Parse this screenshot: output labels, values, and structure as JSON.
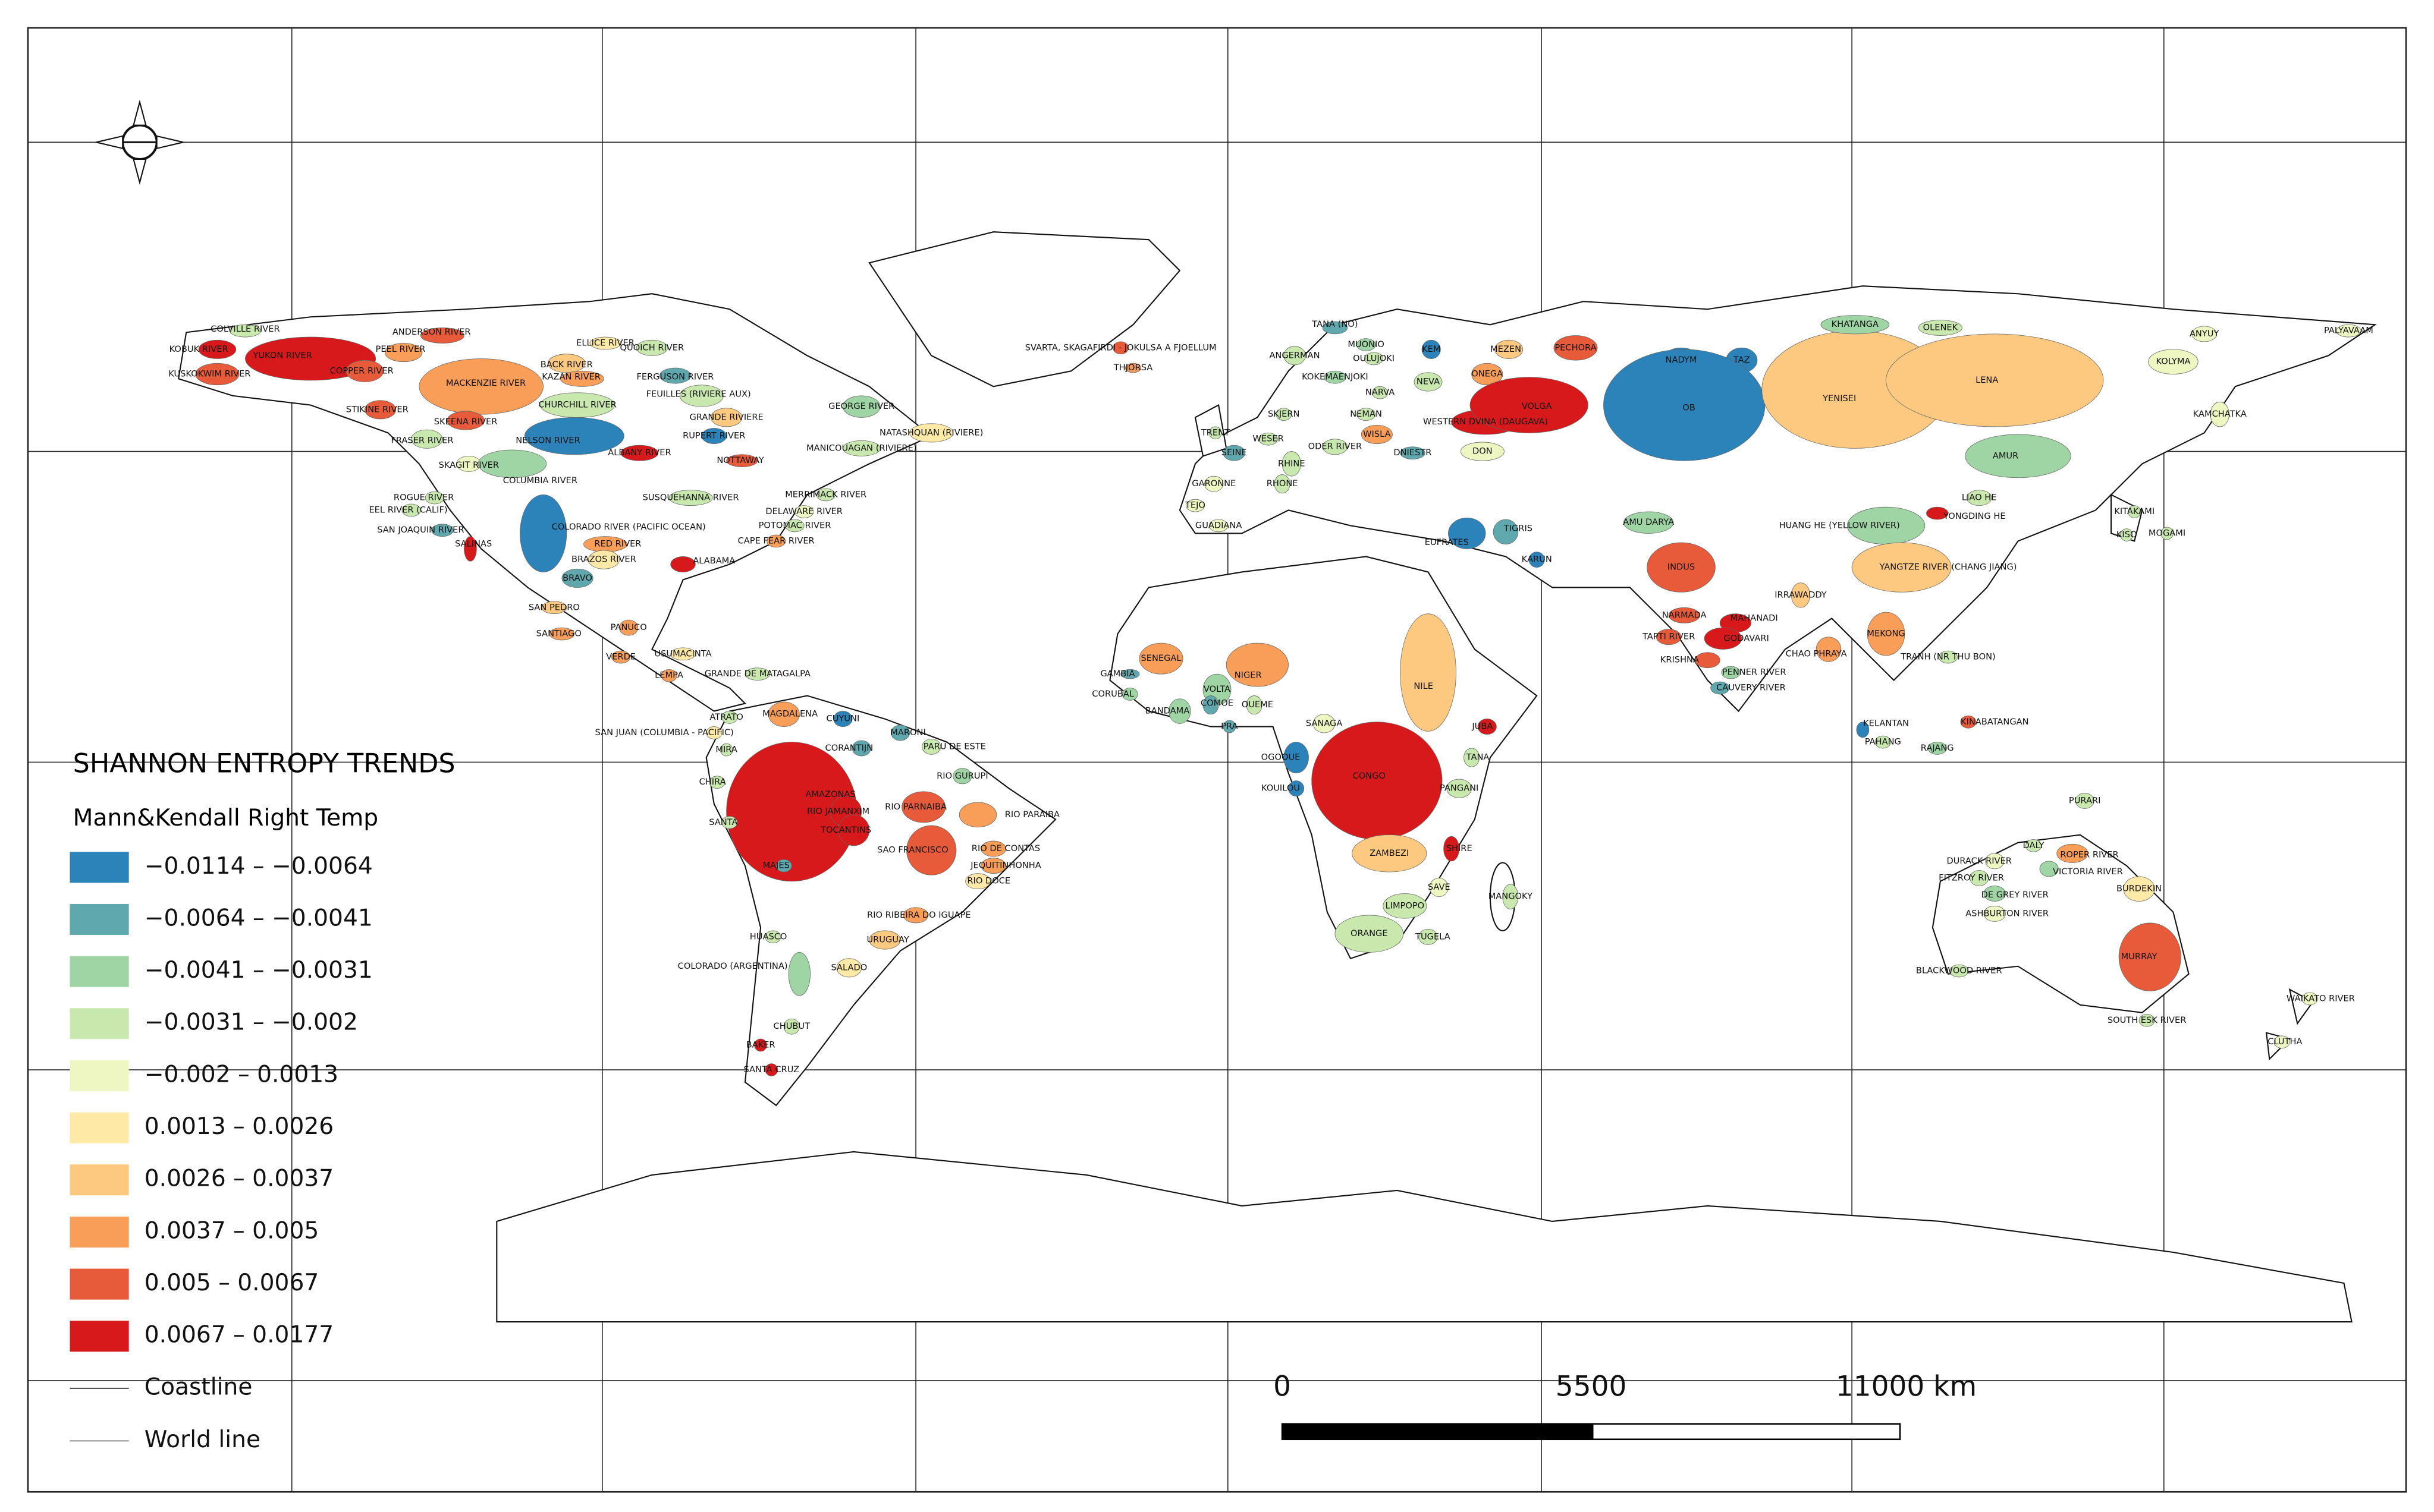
{
  "title": "SHANNON ENTROPY TRENDS",
  "subtitle": "Mann&Kendall Right Temp",
  "legend": [
    {
      "label": "−0.0114 – −0.0064",
      "color": "#2b83ba"
    },
    {
      "label": "−0.0064 – −0.0041",
      "color": "#5fa8ae"
    },
    {
      "label": "−0.0041 – −0.0031",
      "color": "#9fd4a4"
    },
    {
      "label": "−0.0031 – −0.002",
      "color": "#c9e8ae"
    },
    {
      "label": "−0.002 – 0.0013",
      "color": "#eef7c2"
    },
    {
      "label": "0.0013 – 0.0026",
      "color": "#feeaa6"
    },
    {
      "label": "0.0026 – 0.0037",
      "color": "#fdc980"
    },
    {
      "label": "0.0037 – 0.005",
      "color": "#f99e59"
    },
    {
      "label": "0.005 – 0.0067",
      "color": "#e85b3a"
    },
    {
      "label": "0.0067 – 0.0177",
      "color": "#d7191c"
    }
  ],
  "lines": [
    {
      "label": "Coastline"
    },
    {
      "label": "World line"
    }
  ],
  "scale_bar": {
    "labels": [
      "0",
      "5500",
      "11000 km"
    ]
  },
  "basins": [
    {
      "name": "COLVILLE RIVER",
      "color": "#c9e8ae"
    },
    {
      "name": "YUKON RIVER",
      "color": "#d7191c"
    },
    {
      "name": "KOBUK RIVER",
      "color": "#d7191c"
    },
    {
      "name": "KUSKOKWIM RIVER",
      "color": "#e85b3a"
    },
    {
      "name": "COPPER RIVER",
      "color": "#e85b3a"
    },
    {
      "name": "PEEL RIVER",
      "color": "#f99e59"
    },
    {
      "name": "ANDERSON RIVER",
      "color": "#e85b3a"
    },
    {
      "name": "MACKENZIE RIVER",
      "color": "#f99e59"
    },
    {
      "name": "STIKINE RIVER",
      "color": "#e85b3a"
    },
    {
      "name": "SKEENA RIVER",
      "color": "#e85b3a"
    },
    {
      "name": "FRASER RIVER",
      "color": "#c9e8ae"
    },
    {
      "name": "SKAGIT RIVER",
      "color": "#eef7c2"
    },
    {
      "name": "COLUMBIA RIVER",
      "color": "#9fd4a4"
    },
    {
      "name": "BACK RIVER",
      "color": "#fdc980"
    },
    {
      "name": "KAZAN RIVER",
      "color": "#f99e59"
    },
    {
      "name": "ELLICE RIVER",
      "color": "#feeaa6"
    },
    {
      "name": "QUOICH RIVER",
      "color": "#c9e8ae"
    },
    {
      "name": "FERGUSON RIVER",
      "color": "#5fa8ae"
    },
    {
      "name": "CHURCHILL RIVER",
      "color": "#c9e8ae"
    },
    {
      "name": "NELSON RIVER",
      "color": "#2b83ba"
    },
    {
      "name": "ALBANY RIVER",
      "color": "#d7191c"
    },
    {
      "name": "FEUILLES (RIVIERE AUX)",
      "color": "#c9e8ae"
    },
    {
      "name": "GRANDE RIVIERE",
      "color": "#fdc980"
    },
    {
      "name": "RUPERT RIVER",
      "color": "#2b83ba"
    },
    {
      "name": "NOTTAWAY",
      "color": "#e85b3a"
    },
    {
      "name": "GEORGE RIVER",
      "color": "#9fd4a4"
    },
    {
      "name": "NATASHQUAN (RIVIERE)",
      "color": "#feeaa6"
    },
    {
      "name": "MANICOUAGAN (RIVIERE)",
      "color": "#c9e8ae"
    },
    {
      "name": "SUSQUEHANNA RIVER",
      "color": "#c9e8ae"
    },
    {
      "name": "MERRIMACK RIVER",
      "color": "#c9e8ae"
    },
    {
      "name": "DELAWARE RIVER",
      "color": "#eef7c2"
    },
    {
      "name": "POTOMAC RIVER",
      "color": "#c9e8ae"
    },
    {
      "name": "CAPE FEAR RIVER",
      "color": "#f99e59"
    },
    {
      "name": "ROGUE RIVER",
      "color": "#c9e8ae"
    },
    {
      "name": "EEL RIVER (CALIF)",
      "color": "#c9e8ae"
    },
    {
      "name": "SAN JOAQUIN RIVER",
      "color": "#5fa8ae"
    },
    {
      "name": "SALINAS",
      "color": "#d7191c"
    },
    {
      "name": "COLORADO RIVER (PACIFIC OCEAN)",
      "color": "#2b83ba"
    },
    {
      "name": "RED RIVER",
      "color": "#f99e59"
    },
    {
      "name": "BRAZOS RIVER",
      "color": "#feeaa6"
    },
    {
      "name": "ALABAMA",
      "color": "#d7191c"
    },
    {
      "name": "BRAVO",
      "color": "#5fa8ae"
    },
    {
      "name": "SAN PEDRO",
      "color": "#fdc980"
    },
    {
      "name": "PANUCO",
      "color": "#f99e59"
    },
    {
      "name": "SANTIAGO",
      "color": "#f99e59"
    },
    {
      "name": "USUMACINTA",
      "color": "#feeaa6"
    },
    {
      "name": "VERDE",
      "color": "#f99e59"
    },
    {
      "name": "GRANDE DE MATAGALPA",
      "color": "#c9e8ae"
    },
    {
      "name": "LEMPA",
      "color": "#f99e59"
    },
    {
      "name": "MAGDALENA",
      "color": "#f99e59"
    },
    {
      "name": "ATRATO",
      "color": "#c9e8ae"
    },
    {
      "name": "CUYUNI",
      "color": "#2b83ba"
    },
    {
      "name": "SAN JUAN (COLUMBIA - PACIFIC)",
      "color": "#feeaa6"
    },
    {
      "name": "MIRA",
      "color": "#c9e8ae"
    },
    {
      "name": "MARONI",
      "color": "#5fa8ae"
    },
    {
      "name": "CORANTIJN",
      "color": "#5fa8ae"
    },
    {
      "name": "PARU DE ESTE",
      "color": "#c9e8ae"
    },
    {
      "name": "RIO GURUPI",
      "color": "#9fd4a4"
    },
    {
      "name": "AMAZONAS",
      "color": "#d7191c"
    },
    {
      "name": "RIO JAMANXIM",
      "color": "#d7191c"
    },
    {
      "name": "RIO PARNAIBA",
      "color": "#e85b3a"
    },
    {
      "name": "RIO PARAIBA",
      "color": "#f99e59"
    },
    {
      "name": "TOCANTINS",
      "color": "#d7191c"
    },
    {
      "name": "SAO FRANCISCO",
      "color": "#e85b3a"
    },
    {
      "name": "RIO DE CONTAS",
      "color": "#f99e59"
    },
    {
      "name": "JEQUITINHONHA",
      "color": "#f99e59"
    },
    {
      "name": "RIO DOCE",
      "color": "#feeaa6"
    },
    {
      "name": "SANTA",
      "color": "#c9e8ae"
    },
    {
      "name": "CHIRA",
      "color": "#c9e8ae"
    },
    {
      "name": "MAJES",
      "color": "#5fa8ae"
    },
    {
      "name": "RIO RIBEIRA DO IGUAPE",
      "color": "#f99e59"
    },
    {
      "name": "URUGUAY",
      "color": "#fdc980"
    },
    {
      "name": "HUASCO",
      "color": "#c9e8ae"
    },
    {
      "name": "COLORADO (ARGENTINA)",
      "color": "#9fd4a4"
    },
    {
      "name": "SALADO",
      "color": "#feeaa6"
    },
    {
      "name": "CHUBUT",
      "color": "#c9e8ae"
    },
    {
      "name": "BAKER",
      "color": "#d7191c"
    },
    {
      "name": "SANTA CRUZ",
      "color": "#d7191c"
    },
    {
      "name": "SVARTA, SKAGAFIRDI - JOKULSA A FJOELLUM",
      "color": "#e85b3a"
    },
    {
      "name": "THJORSA",
      "color": "#f99e59"
    },
    {
      "name": "TANA (NO)",
      "color": "#5fa8ae"
    },
    {
      "name": "OULUJOKI",
      "color": "#c9e8ae"
    },
    {
      "name": "MUONIO",
      "color": "#9fd4a4"
    },
    {
      "name": "ANGERMAN",
      "color": "#c9e8ae"
    },
    {
      "name": "KOKEMAENJOKI",
      "color": "#9fd4a4"
    },
    {
      "name": "KEM",
      "color": "#2b83ba"
    },
    {
      "name": "NEVA",
      "color": "#c9e8ae"
    },
    {
      "name": "ONEGA",
      "color": "#f99e59"
    },
    {
      "name": "MEZEN",
      "color": "#fdc980"
    },
    {
      "name": "PECHORA",
      "color": "#e85b3a"
    },
    {
      "name": "NEMAN",
      "color": "#c9e8ae"
    },
    {
      "name": "NARVA",
      "color": "#c9e8ae"
    },
    {
      "name": "SKJERN",
      "color": "#c9e8ae"
    },
    {
      "name": "WISLA",
      "color": "#f99e59"
    },
    {
      "name": "ODER RIVER",
      "color": "#c9e8ae"
    },
    {
      "name": "DNIESTR",
      "color": "#5fa8ae"
    },
    {
      "name": "WESTERN DVINA (DAUGAVA)",
      "color": "#d7191c"
    },
    {
      "name": "VOLGA",
      "color": "#d7191c"
    },
    {
      "name": "DON",
      "color": "#eef7c2"
    },
    {
      "name": "TRENT",
      "color": "#c9e8ae"
    },
    {
      "name": "WESER",
      "color": "#c9e8ae"
    },
    {
      "name": "RHINE",
      "color": "#c9e8ae"
    },
    {
      "name": "SEINE",
      "color": "#5fa8ae"
    },
    {
      "name": "GARONNE",
      "color": "#eef7c2"
    },
    {
      "name": "RHONE",
      "color": "#c9e8ae"
    },
    {
      "name": "TEJO",
      "color": "#eef7c2"
    },
    {
      "name": "GUADIANA",
      "color": "#eef7c2"
    },
    {
      "name": "NADYM",
      "color": "#2b83ba"
    },
    {
      "name": "TAZ",
      "color": "#2b83ba"
    },
    {
      "name": "OB",
      "color": "#2b83ba"
    },
    {
      "name": "YENISEI",
      "color": "#fdc980"
    },
    {
      "name": "KHATANGA",
      "color": "#9fd4a4"
    },
    {
      "name": "OLENEK",
      "color": "#c9e8ae"
    },
    {
      "name": "LENA",
      "color": "#fdc980"
    },
    {
      "name": "ANYUY",
      "color": "#eef7c2"
    },
    {
      "name": "PALYAVAAM",
      "color": "#eef7c2"
    },
    {
      "name": "KOLYMA",
      "color": "#eef7c2"
    },
    {
      "name": "KAMCHATKA",
      "color": "#eef7c2"
    },
    {
      "name": "AMUR",
      "color": "#9fd4a4"
    },
    {
      "name": "LIAO HE",
      "color": "#c9e8ae"
    },
    {
      "name": "YONGDING HE",
      "color": "#d7191c"
    },
    {
      "name": "KITAKAMI",
      "color": "#c9e8ae"
    },
    {
      "name": "KISO",
      "color": "#c9e8ae"
    },
    {
      "name": "MOGAMI",
      "color": "#c9e8ae"
    },
    {
      "name": "HUANG HE (YELLOW RIVER)",
      "color": "#9fd4a4"
    },
    {
      "name": "YANGTZE RIVER (CHANG JIANG)",
      "color": "#fdc980"
    },
    {
      "name": "AMU DARYA",
      "color": "#9fd4a4"
    },
    {
      "name": "EUFRATES",
      "color": "#2b83ba"
    },
    {
      "name": "TIGRIS",
      "color": "#5fa8ae"
    },
    {
      "name": "KARUN",
      "color": "#2b83ba"
    },
    {
      "name": "INDUS",
      "color": "#e85b3a"
    },
    {
      "name": "IRRAWADDY",
      "color": "#fdc980"
    },
    {
      "name": "NARMADA",
      "color": "#e85b3a"
    },
    {
      "name": "TAPTI RIVER",
      "color": "#e85b3a"
    },
    {
      "name": "MAHANADI",
      "color": "#d7191c"
    },
    {
      "name": "GODAVARI",
      "color": "#d7191c"
    },
    {
      "name": "MEKONG",
      "color": "#f99e59"
    },
    {
      "name": "CHAO PHRAYA",
      "color": "#f99e59"
    },
    {
      "name": "TRANH (NR THU BON)",
      "color": "#c9e8ae"
    },
    {
      "name": "KRISHNA",
      "color": "#e85b3a"
    },
    {
      "name": "PENNER RIVER",
      "color": "#9fd4a4"
    },
    {
      "name": "CAUVERY RIVER",
      "color": "#5fa8ae"
    },
    {
      "name": "KELANTAN",
      "color": "#2b83ba"
    },
    {
      "name": "PAHANG",
      "color": "#c9e8ae"
    },
    {
      "name": "RAJANG",
      "color": "#9fd4a4"
    },
    {
      "name": "KINABATANGAN",
      "color": "#e85b3a"
    },
    {
      "name": "SENEGAL",
      "color": "#f99e59"
    },
    {
      "name": "GAMBIA",
      "color": "#5fa8ae"
    },
    {
      "name": "CORUBAL",
      "color": "#9fd4a4"
    },
    {
      "name": "BANDAMA",
      "color": "#9fd4a4"
    },
    {
      "name": "VOLTA",
      "color": "#9fd4a4"
    },
    {
      "name": "COMOE",
      "color": "#5fa8ae"
    },
    {
      "name": "OUEME",
      "color": "#c9e8ae"
    },
    {
      "name": "PRA",
      "color": "#5fa8ae"
    },
    {
      "name": "NIGER",
      "color": "#f99e59"
    },
    {
      "name": "SANAGA",
      "color": "#eef7c2"
    },
    {
      "name": "OGOOUE",
      "color": "#2b83ba"
    },
    {
      "name": "KOUILOU",
      "color": "#2b83ba"
    },
    {
      "name": "CONGO",
      "color": "#d7191c"
    },
    {
      "name": "NILE",
      "color": "#fdc980"
    },
    {
      "name": "JUBA",
      "color": "#d7191c"
    },
    {
      "name": "TANA",
      "color": "#c9e8ae"
    },
    {
      "name": "PANGANI",
      "color": "#c9e8ae"
    },
    {
      "name": "ZAMBEZI",
      "color": "#fdc980"
    },
    {
      "name": "SHIRE",
      "color": "#d7191c"
    },
    {
      "name": "SAVE",
      "color": "#eef7c2"
    },
    {
      "name": "LIMPOPO",
      "color": "#c9e8ae"
    },
    {
      "name": "MANGOKY",
      "color": "#c9e8ae"
    },
    {
      "name": "ORANGE",
      "color": "#c9e8ae"
    },
    {
      "name": "TUGELA",
      "color": "#c9e8ae"
    },
    {
      "name": "PURARI",
      "color": "#c9e8ae"
    },
    {
      "name": "DALY",
      "color": "#c9e8ae"
    },
    {
      "name": "ROPER RIVER",
      "color": "#f99e59"
    },
    {
      "name": "DURACK RIVER",
      "color": "#eef7c2"
    },
    {
      "name": "FITZROY RIVER",
      "color": "#c9e8ae"
    },
    {
      "name": "VICTORIA RIVER",
      "color": "#9fd4a4"
    },
    {
      "name": "DE GREY RIVER",
      "color": "#9fd4a4"
    },
    {
      "name": "BURDEKIN",
      "color": "#feeaa6"
    },
    {
      "name": "ASHBURTON RIVER",
      "color": "#eef7c2"
    },
    {
      "name": "BLACKWOOD RIVER",
      "color": "#c9e8ae"
    },
    {
      "name": "MURRAY",
      "color": "#e85b3a"
    },
    {
      "name": "SOUTH ESK RIVER",
      "color": "#c9e8ae"
    },
    {
      "name": "WAIKATO RIVER",
      "color": "#eef7c2"
    },
    {
      "name": "CLUTHA",
      "color": "#eef7c2"
    }
  ]
}
